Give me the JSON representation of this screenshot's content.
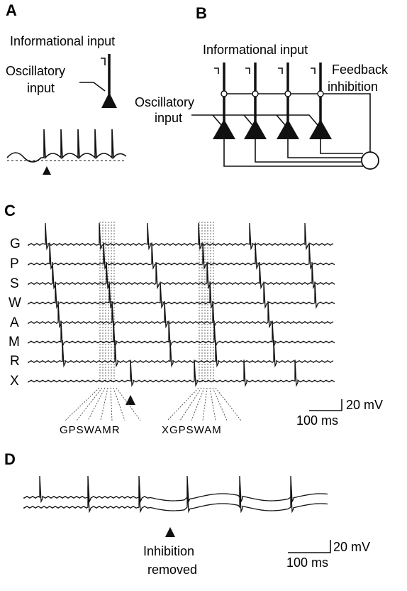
{
  "panels": {
    "a": {
      "letter": "A",
      "informational_input": "Informational input",
      "oscillatory_input_line1": "Oscillatory",
      "oscillatory_input_line2": "input"
    },
    "b": {
      "letter": "B",
      "informational_input": "Informational input",
      "oscillatory_input_line1": "Oscillatory",
      "oscillatory_input_line2": "input",
      "feedback_line1": "Feedback",
      "feedback_line2": "inhibition"
    },
    "c": {
      "letter": "C",
      "trace_labels": [
        "G",
        "P",
        "S",
        "W",
        "A",
        "M",
        "R",
        "X"
      ],
      "sequence_1": "GPSWAMR",
      "sequence_2": "XGPSWAM",
      "scale_voltage": "20 mV",
      "scale_time": "100 ms"
    },
    "d": {
      "letter": "D",
      "annotation_line1": "Inhibition",
      "annotation_line2": "removed",
      "scale_voltage": "20 mV",
      "scale_time": "100 ms"
    }
  },
  "colors": {
    "ink": "#111111",
    "background": "#ffffff"
  }
}
